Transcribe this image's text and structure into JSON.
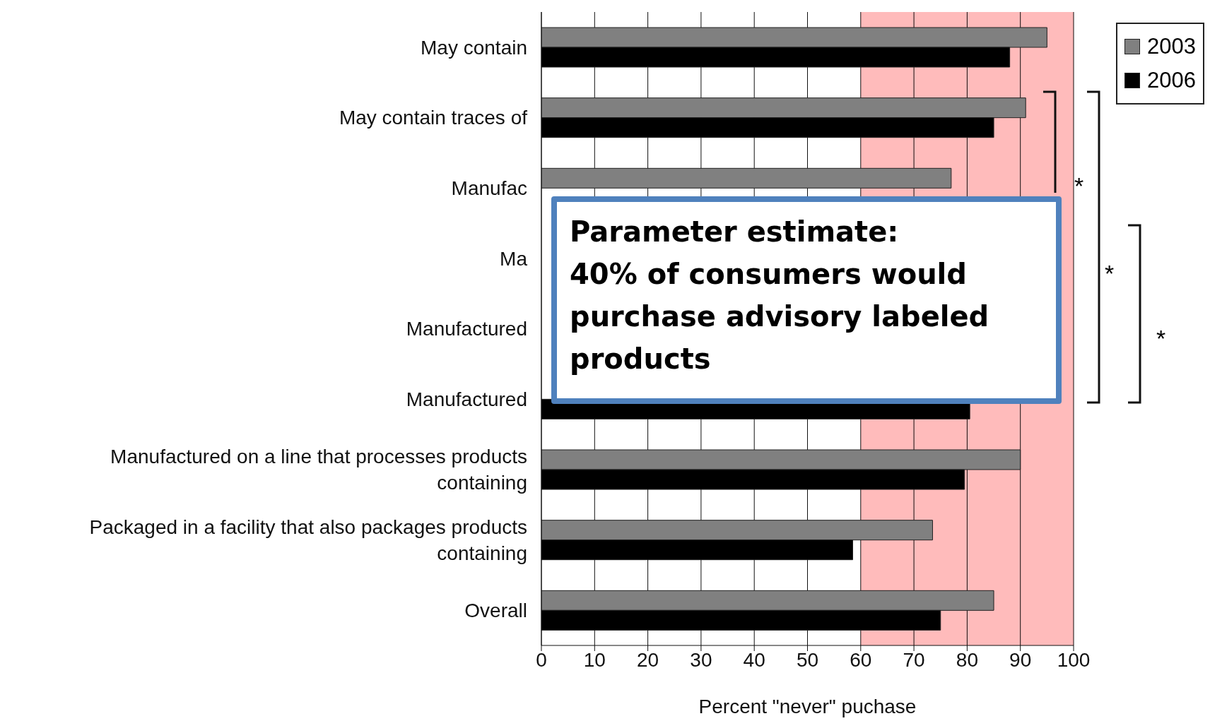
{
  "chart_data": {
    "type": "bar",
    "orientation": "horizontal",
    "xlabel": "Percent \"never\" puchase",
    "categories": [
      "May contain",
      "May contain traces of",
      "Manufac",
      "Ma",
      "Manufactured",
      "Manufactured",
      "Manufactured on a line that processes products containing",
      "Packaged in a facility that also packages products containing",
      "Overall"
    ],
    "series": [
      {
        "name": "2003",
        "color": "#808080",
        "values": [
          95,
          91,
          77,
          null,
          null,
          null,
          90,
          73.5,
          85
        ]
      },
      {
        "name": "2006",
        "color": "#000000",
        "values": [
          88,
          85,
          null,
          null,
          null,
          80.5,
          79.5,
          58.5,
          75
        ]
      }
    ],
    "xlim": [
      0,
      100
    ],
    "xticks": [
      0,
      10,
      20,
      30,
      40,
      50,
      60,
      70,
      80,
      90,
      100
    ],
    "bands": [
      {
        "axis": "x",
        "from": 60,
        "to": 100,
        "color": "#ffbbbb"
      }
    ],
    "grid": "x",
    "legend": "top right",
    "annotations": [
      "Parameter estimate:",
      "40% of consumers would purchase advisory labeled products",
      "*",
      "*",
      "*"
    ]
  }
}
